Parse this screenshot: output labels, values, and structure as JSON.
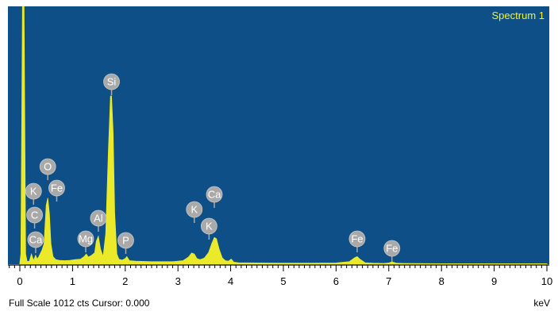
{
  "chart_data": {
    "type": "area",
    "title": "Spectrum 1",
    "xunit": "keV",
    "xlim": [
      0,
      10
    ],
    "ylim": [
      0,
      1012
    ],
    "x_ticks": [
      "0",
      "1",
      "2",
      "3",
      "4",
      "5",
      "6",
      "7",
      "8",
      "9",
      "10"
    ],
    "series": [
      {
        "values_kev": [
          0,
          0.02,
          0.05,
          0.08,
          0.11,
          0.14,
          0.18,
          0.22,
          0.26,
          0.28,
          0.3,
          0.33,
          0.36,
          0.42,
          0.46,
          0.5,
          0.53,
          0.56,
          0.59,
          0.63,
          0.68,
          0.75,
          0.85,
          0.95,
          1.05,
          1.15,
          1.22,
          1.26,
          1.3,
          1.36,
          1.42,
          1.45,
          1.49,
          1.53,
          1.58,
          1.63,
          1.68,
          1.72,
          1.74,
          1.77,
          1.8,
          1.84,
          1.88,
          1.94,
          2.0,
          2.03,
          2.08,
          2.2,
          2.5,
          2.9,
          3.1,
          3.2,
          3.26,
          3.31,
          3.36,
          3.42,
          3.5,
          3.58,
          3.64,
          3.69,
          3.73,
          3.78,
          3.84,
          3.9,
          3.96,
          4.01,
          4.06,
          4.15,
          4.5,
          5.0,
          5.5,
          6.0,
          6.25,
          6.35,
          6.4,
          6.45,
          6.55,
          6.7,
          6.9,
          7.0,
          7.06,
          7.15,
          7.3,
          8.0,
          9.0,
          10.0
        ],
        "counts": [
          5,
          40,
          1012,
          1012,
          40,
          10,
          12,
          40,
          15,
          25,
          35,
          20,
          30,
          55,
          80,
          230,
          260,
          200,
          80,
          30,
          18,
          15,
          14,
          15,
          18,
          20,
          30,
          40,
          28,
          35,
          45,
          90,
          110,
          60,
          30,
          120,
          450,
          660,
          660,
          520,
          200,
          40,
          20,
          16,
          22,
          30,
          14,
          12,
          10,
          10,
          14,
          28,
          44,
          40,
          22,
          18,
          24,
          45,
          80,
          105,
          100,
          60,
          25,
          14,
          12,
          20,
          8,
          6,
          5,
          4,
          4,
          5,
          10,
          25,
          30,
          20,
          6,
          4,
          3,
          5,
          9,
          4,
          3,
          2,
          2,
          2
        ]
      }
    ],
    "peak_labels": [
      {
        "element": "Si",
        "kev": 1.74
      },
      {
        "element": "O",
        "kev": 0.53
      },
      {
        "element": "Fe",
        "kev": 0.7
      },
      {
        "element": "K",
        "kev": 0.26
      },
      {
        "element": "C",
        "kev": 0.28
      },
      {
        "element": "Ca",
        "kev": 0.3
      },
      {
        "element": "Al",
        "kev": 1.49
      },
      {
        "element": "Mg",
        "kev": 1.25
      },
      {
        "element": "P",
        "kev": 2.01
      },
      {
        "element": "Ca",
        "kev": 3.69
      },
      {
        "element": "K",
        "kev": 3.31
      },
      {
        "element": "K",
        "kev": 3.59
      },
      {
        "element": "Fe",
        "kev": 6.4
      },
      {
        "element": "Fe",
        "kev": 7.06
      }
    ],
    "background_color": "#0d4f86",
    "peak_color": "#eaea2a",
    "label_color": "#a9a9a9",
    "title_color": "#f3f32e"
  },
  "status": {
    "left_text": "Full Scale 1012 cts Cursor: 0.000",
    "right_text": "keV"
  }
}
